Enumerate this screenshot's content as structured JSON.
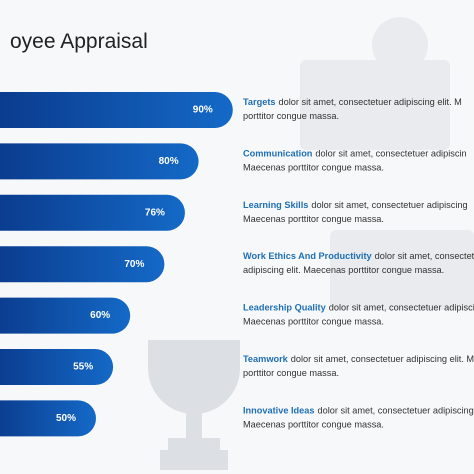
{
  "chart_data": {
    "type": "bar",
    "title": "oyee Appraisal",
    "categories": [
      "Targets",
      "Communication",
      "Learning Skills",
      "Work Ethics And Productivity",
      "Leadership Quality",
      "Teamwork",
      "Innovative Ideas"
    ],
    "values": [
      90,
      80,
      76,
      70,
      60,
      55,
      50
    ],
    "value_labels": [
      "90%",
      "80%",
      "76%",
      "70%",
      "60%",
      "55%",
      "50%"
    ],
    "descriptions": [
      [
        "dolor sit amet, consectetuer adipiscing elit. M",
        "porttitor congue massa."
      ],
      [
        "dolor sit amet, consectetuer adipiscin",
        "Maecenas porttitor congue massa."
      ],
      [
        "dolor sit amet, consectetuer adipiscing",
        "Maecenas porttitor congue massa."
      ],
      [
        "dolor sit amet, consectetuer",
        "adipiscing elit. Maecenas porttitor congue massa."
      ],
      [
        "dolor sit amet, consectetuer adipiscin",
        "Maecenas porttitor congue massa."
      ],
      [
        "dolor sit amet, consectetuer adipiscing elit. Maecenas",
        "porttitor congue massa."
      ],
      [
        "dolor sit amet, consectetuer adipiscing",
        "Maecenas porttitor congue massa."
      ]
    ],
    "color": "#0d4fa3"
  }
}
